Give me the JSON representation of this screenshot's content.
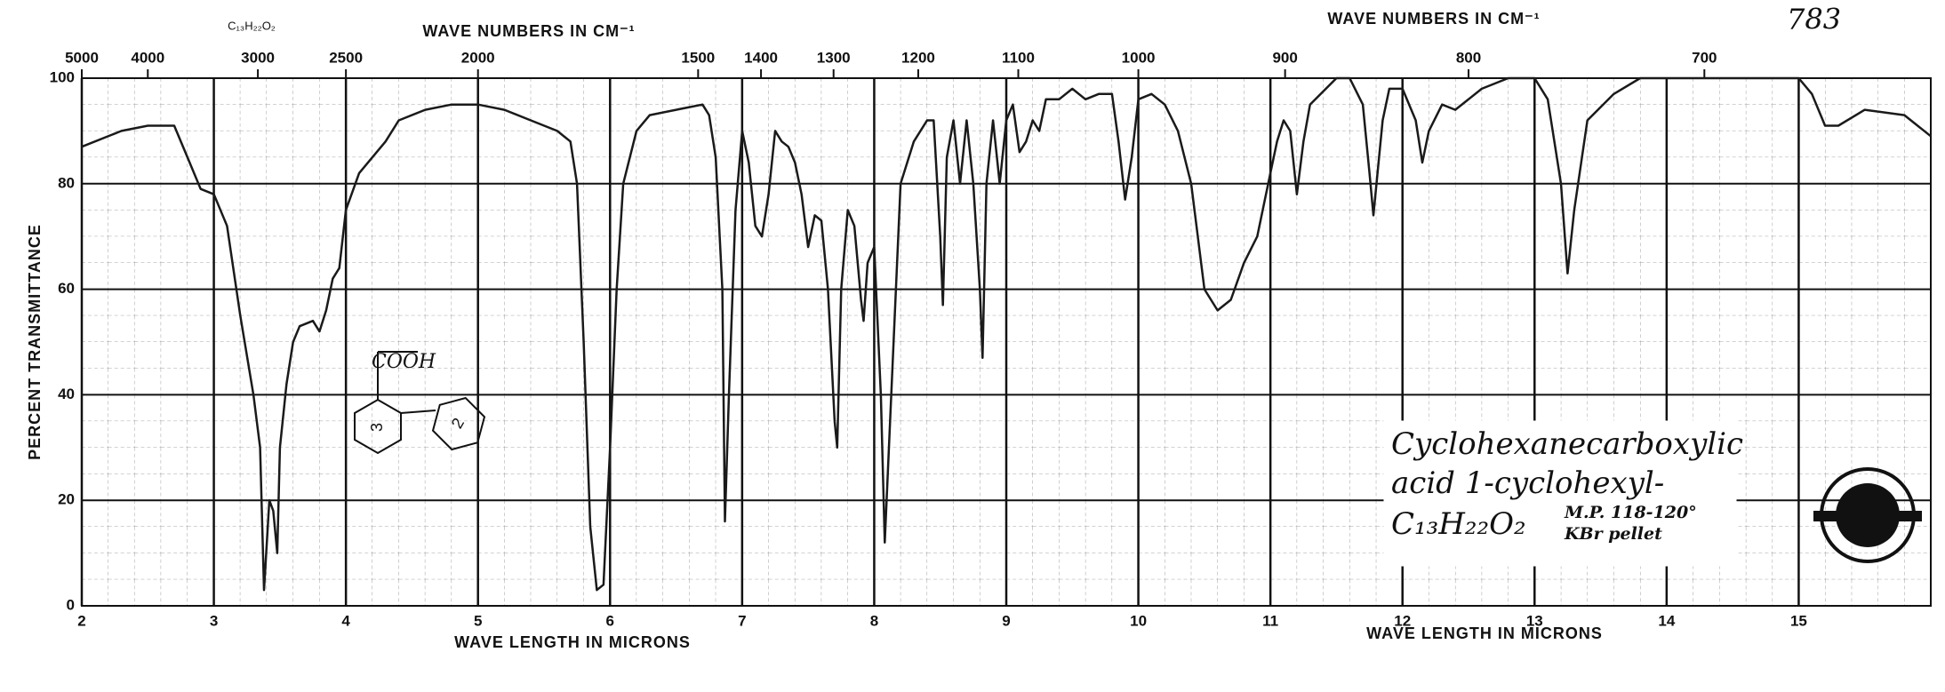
{
  "chart_data": {
    "type": "line",
    "page_number": "783",
    "formula_top": "C₁₃H₂₂O₂",
    "top_axis": {
      "labels": [
        "WAVE NUMBERS IN CM⁻¹",
        "WAVE NUMBERS IN CM⁻¹"
      ],
      "ticks": [
        5000,
        4000,
        3000,
        2500,
        2000,
        1500,
        1400,
        1300,
        1200,
        1100,
        1000,
        900,
        800,
        700
      ]
    },
    "ylabel": "PERCENT TRANSMITTANCE",
    "xlabels": [
      "WAVE LENGTH IN MICRONS",
      "WAVE LENGTH IN MICRONS"
    ],
    "xlim": [
      2,
      16
    ],
    "ylim": [
      0,
      100
    ],
    "xticks": [
      2,
      3,
      4,
      5,
      6,
      7,
      8,
      9,
      10,
      11,
      12,
      13,
      14,
      15
    ],
    "yticks": [
      0,
      20,
      40,
      60,
      80,
      100
    ],
    "grid": true,
    "color": "#1a1a1a",
    "x": [
      2.0,
      2.3,
      2.5,
      2.7,
      2.8,
      2.9,
      3.0,
      3.1,
      3.2,
      3.3,
      3.35,
      3.38,
      3.42,
      3.45,
      3.48,
      3.5,
      3.55,
      3.6,
      3.65,
      3.75,
      3.8,
      3.85,
      3.9,
      3.95,
      4.0,
      4.1,
      4.2,
      4.3,
      4.4,
      4.6,
      4.8,
      5.0,
      5.2,
      5.4,
      5.6,
      5.7,
      5.75,
      5.8,
      5.85,
      5.9,
      5.95,
      6.0,
      6.05,
      6.1,
      6.2,
      6.3,
      6.5,
      6.7,
      6.75,
      6.8,
      6.85,
      6.87,
      6.9,
      6.95,
      7.0,
      7.05,
      7.1,
      7.15,
      7.2,
      7.25,
      7.3,
      7.35,
      7.4,
      7.45,
      7.5,
      7.55,
      7.6,
      7.65,
      7.7,
      7.72,
      7.75,
      7.8,
      7.85,
      7.9,
      7.92,
      7.95,
      8.0,
      8.05,
      8.08,
      8.12,
      8.2,
      8.3,
      8.4,
      8.45,
      8.5,
      8.52,
      8.55,
      8.6,
      8.65,
      8.7,
      8.75,
      8.8,
      8.82,
      8.85,
      8.9,
      8.95,
      9.0,
      9.05,
      9.1,
      9.15,
      9.2,
      9.25,
      9.3,
      9.4,
      9.5,
      9.6,
      9.7,
      9.8,
      9.85,
      9.9,
      9.95,
      10.0,
      10.1,
      10.2,
      10.3,
      10.4,
      10.5,
      10.6,
      10.7,
      10.8,
      10.9,
      11.0,
      11.05,
      11.1,
      11.15,
      11.2,
      11.25,
      11.3,
      11.5,
      11.6,
      11.7,
      11.75,
      11.78,
      11.85,
      11.9,
      12.0,
      12.1,
      12.15,
      12.2,
      12.3,
      12.4,
      12.6,
      12.8,
      13.0,
      13.1,
      13.2,
      13.25,
      13.3,
      13.4,
      13.6,
      13.8,
      14.0,
      14.5,
      15.0,
      15.1,
      15.2,
      15.3,
      15.5,
      15.8,
      16.0
    ],
    "values": [
      87,
      90,
      91,
      91,
      85,
      79,
      78,
      72,
      55,
      40,
      30,
      3,
      20,
      18,
      10,
      30,
      42,
      50,
      53,
      54,
      52,
      56,
      62,
      64,
      75,
      82,
      85,
      88,
      92,
      94,
      95,
      95,
      94,
      92,
      90,
      88,
      80,
      50,
      15,
      3,
      4,
      30,
      60,
      80,
      90,
      93,
      94,
      95,
      93,
      85,
      60,
      16,
      40,
      75,
      90,
      84,
      72,
      70,
      78,
      90,
      88,
      87,
      84,
      78,
      68,
      74,
      73,
      60,
      35,
      30,
      60,
      75,
      72,
      58,
      54,
      65,
      68,
      40,
      12,
      35,
      80,
      88,
      92,
      92,
      70,
      57,
      85,
      92,
      80,
      92,
      80,
      60,
      47,
      80,
      92,
      80,
      92,
      95,
      86,
      88,
      92,
      90,
      96,
      96,
      98,
      96,
      97,
      97,
      88,
      77,
      85,
      96,
      97,
      95,
      90,
      80,
      60,
      56,
      58,
      65,
      70,
      82,
      88,
      92,
      90,
      78,
      88,
      95,
      100,
      100,
      95,
      82,
      74,
      92,
      98,
      98,
      92,
      84,
      90,
      95,
      94,
      98,
      100,
      100,
      96,
      80,
      63,
      75,
      92,
      97,
      100,
      100,
      100,
      100,
      97,
      91,
      91,
      94,
      93,
      89
    ],
    "structure": {
      "group": "COOH",
      "rings": [
        "3",
        "2"
      ]
    },
    "sample": {
      "name_lines": [
        "Cyclohexanecarboxylic",
        "acid 1-cyclohexyl-",
        "C₁₃H₂₂O₂"
      ],
      "mp": "M.P. 118-120°",
      "medium": "KBr pellet"
    }
  }
}
